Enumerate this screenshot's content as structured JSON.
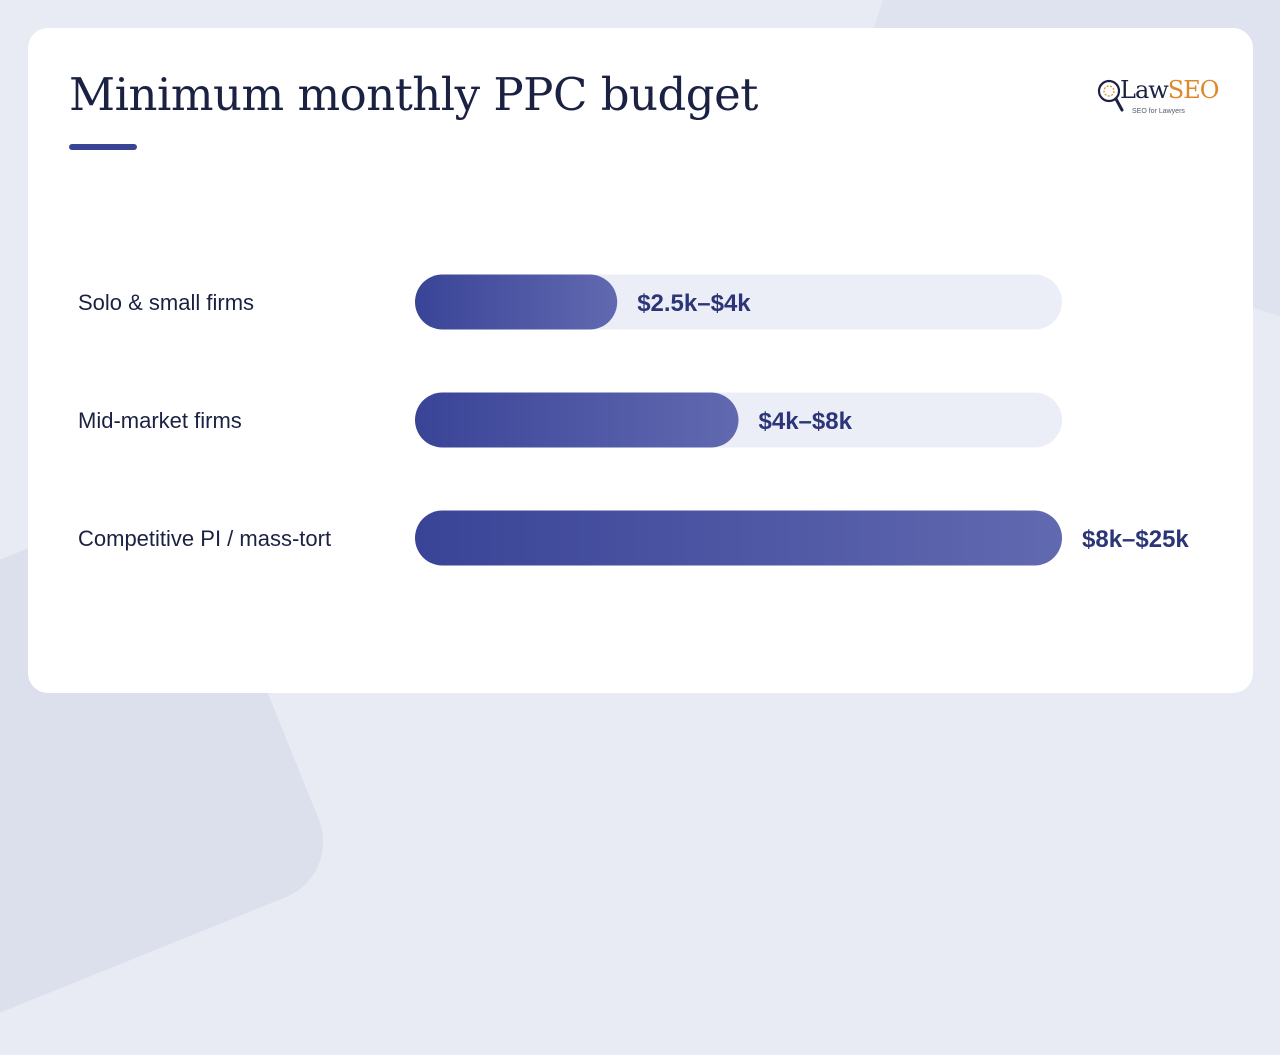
{
  "title": "Minimum monthly PPC budget",
  "logo": {
    "word_main": "Law",
    "word_accent": "SEO",
    "tagline": "SEO for Lawyers",
    "accent_color": "#e0872a",
    "icon": "magnifier-gavel-icon"
  },
  "colors": {
    "bar_start": "#3a4497",
    "bar_end": "#6169b0",
    "track": "#eceef7",
    "label": "#1b2142",
    "value": "#2c3577"
  },
  "chart_data": {
    "type": "bar",
    "orientation": "horizontal",
    "categories": [
      "Solo & small firms",
      "Mid-market firms",
      "Competitive PI / mass-tort"
    ],
    "values": [
      2.5,
      4,
      8
    ],
    "value_labels": [
      "$2.5k–$4k",
      "$4k–$8k",
      "$8k–$25k"
    ],
    "xlim": [
      0,
      8
    ],
    "unit": "k USD (lower bound of range)",
    "title": "Minimum monthly PPC budget",
    "xlabel": "",
    "ylabel": "",
    "grid": false
  }
}
